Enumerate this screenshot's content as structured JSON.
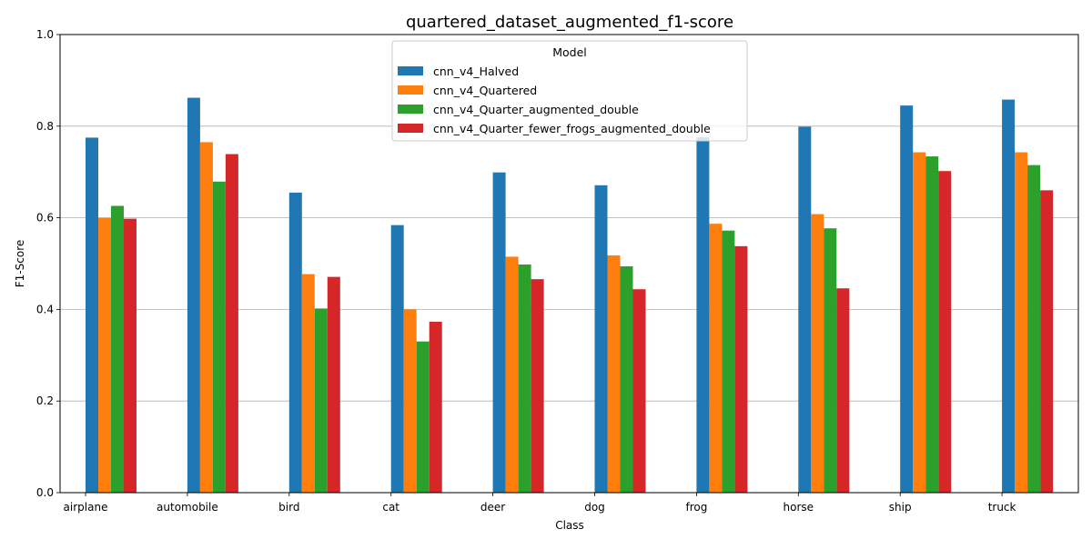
{
  "chart_data": {
    "type": "bar",
    "title": "quartered_dataset_augmented_f1-score",
    "xlabel": "Class",
    "ylabel": "F1-Score",
    "ylim": [
      0,
      1.0
    ],
    "yticks": [
      "0.0",
      "0.2",
      "0.4",
      "0.6",
      "0.8",
      "1.0"
    ],
    "grid": "y",
    "legend": {
      "title": "Model",
      "placement": "top-center"
    },
    "categories": [
      "airplane",
      "automobile",
      "bird",
      "cat",
      "deer",
      "dog",
      "frog",
      "horse",
      "ship",
      "truck"
    ],
    "series": [
      {
        "name": "cnn_v4_Halved",
        "color": "#1f77b4",
        "values": [
          0.775,
          0.862,
          0.655,
          0.584,
          0.699,
          0.671,
          0.776,
          0.799,
          0.845,
          0.858
        ]
      },
      {
        "name": "cnn_v4_Quartered",
        "color": "#ff7f0e",
        "values": [
          0.6,
          0.765,
          0.477,
          0.4,
          0.515,
          0.518,
          0.587,
          0.608,
          0.743,
          0.743
        ]
      },
      {
        "name": "cnn_v4_Quarter_augmented_double",
        "color": "#2ca02c",
        "values": [
          0.626,
          0.679,
          0.402,
          0.33,
          0.498,
          0.494,
          0.572,
          0.577,
          0.734,
          0.715
        ]
      },
      {
        "name": "cnn_v4_Quarter_fewer_frogs_augmented_double",
        "color": "#d62728",
        "values": [
          0.598,
          0.739,
          0.471,
          0.373,
          0.466,
          0.444,
          0.538,
          0.446,
          0.702,
          0.66
        ]
      }
    ]
  }
}
